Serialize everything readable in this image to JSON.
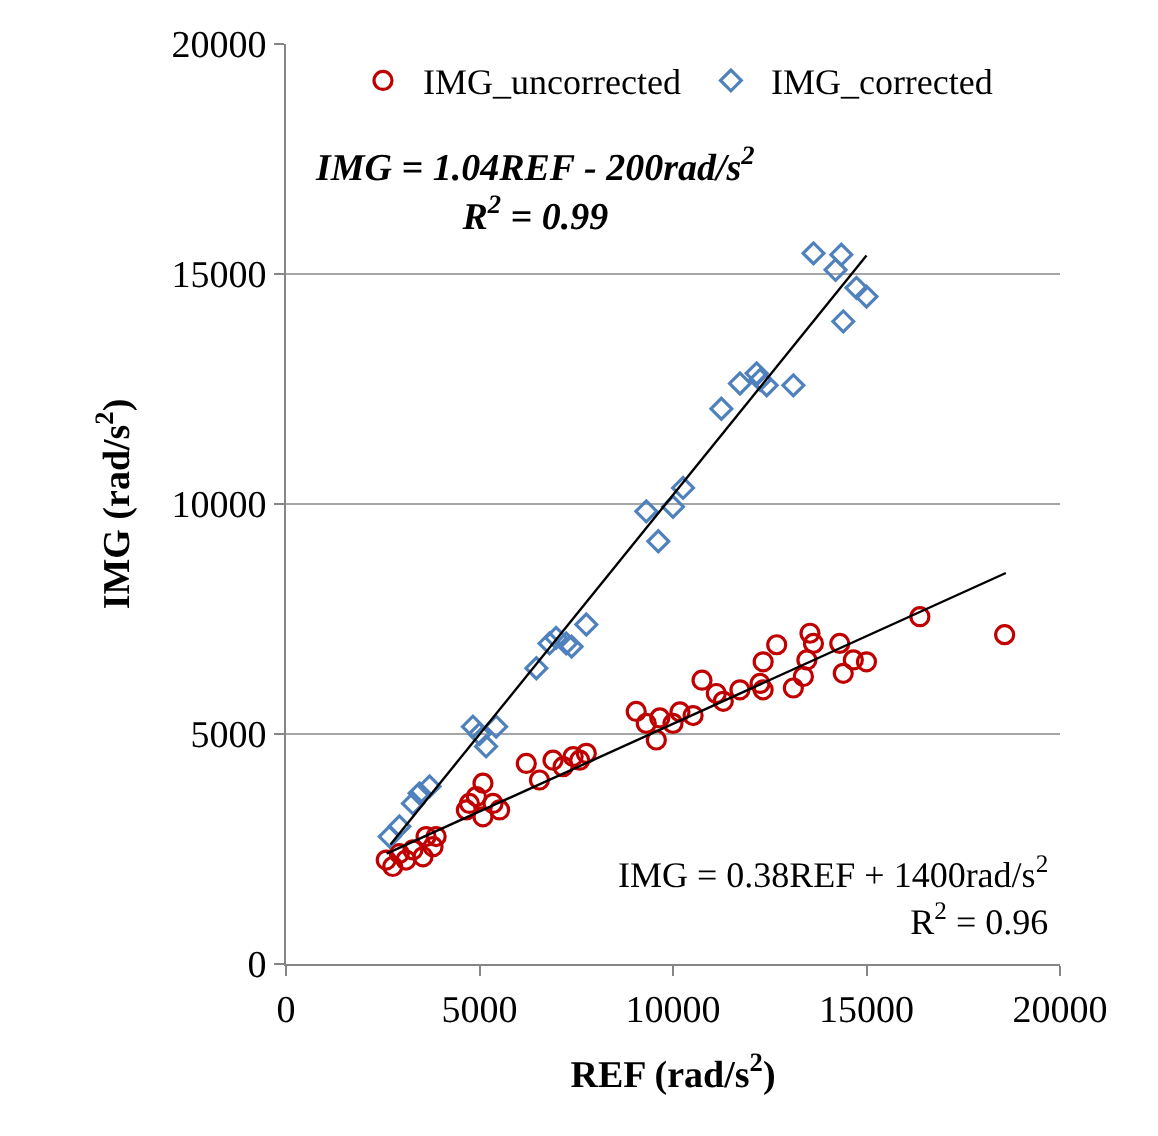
{
  "chart_data": {
    "type": "scatter",
    "xlabel": "REF (rad/s$^{2}$)",
    "ylabel": "IMG (rad/s$^{2}$)",
    "xlim": [
      0,
      20000
    ],
    "xticks": [
      0,
      5000,
      10000,
      15000,
      20000
    ],
    "ylim": [
      0,
      20000
    ],
    "yticks": [
      0,
      5000,
      10000,
      15000,
      20000
    ],
    "grid": "y",
    "legend": "top",
    "annotations": [
      "IMG = 1.04REF - 200rad/s$^{2}$\nR$^{2}$ = 0.99",
      "IMG = 0.38REF + 1400rad/s$^{2}$\nR$^{2}$ = 0.96"
    ],
    "series": [
      {
        "name": "IMG_uncorrected",
        "color": "#c00000",
        "marker": "circle",
        "x": [
          16380,
          18570,
          13540,
          14310,
          13630,
          12680,
          12330,
          13460,
          14660,
          15000,
          14400,
          13370,
          13110,
          12250,
          12330,
          11730,
          11300,
          11120,
          10750,
          10520,
          10180,
          10000,
          9570,
          9660,
          9310,
          9050,
          7760,
          7590,
          7420,
          6900,
          7160,
          6210,
          6550,
          5090,
          4740,
          4920,
          5350,
          5090,
          4660,
          5520,
          3620,
          3800,
          3280,
          2930,
          2590,
          3100,
          2760,
          3540,
          3880
        ],
        "values": [
          7550,
          7160,
          7190,
          6970,
          6970,
          6940,
          6570,
          6610,
          6610,
          6570,
          6320,
          6250,
          6000,
          6100,
          5960,
          5960,
          5710,
          5880,
          6170,
          5400,
          5480,
          5230,
          4870,
          5350,
          5230,
          5490,
          4580,
          4430,
          4510,
          4430,
          4290,
          4360,
          4000,
          3930,
          3490,
          3640,
          3490,
          3200,
          3350,
          3350,
          2770,
          2550,
          2480,
          2400,
          2260,
          2260,
          2120,
          2330,
          2770
        ]
      },
      {
        "name": "IMG_corrected",
        "color": "#4f81bd",
        "marker": "diamond",
        "x": [
          13630,
          14350,
          14200,
          14740,
          15000,
          14400,
          11730,
          12160,
          12250,
          12420,
          13110,
          11250,
          9310,
          10260,
          10000,
          9620,
          7760,
          7240,
          6810,
          6980,
          7380,
          6470,
          4830,
          5430,
          5000,
          5170,
          3450,
          3710,
          3280,
          2850,
          2680,
          2930
        ],
        "values": [
          15450,
          15420,
          15090,
          14700,
          14510,
          13970,
          12620,
          12840,
          12700,
          12580,
          12580,
          12070,
          9840,
          10350,
          9940,
          9190,
          7380,
          6970,
          6970,
          7090,
          6900,
          6430,
          5160,
          5160,
          5000,
          4730,
          3710,
          3860,
          3490,
          null,
          2770,
          2990
        ]
      },
      {
        "type": "line",
        "color": "#000000",
        "marker": "none",
        "x": [
          2700,
          15000
        ],
        "values": [
          2600,
          15400
        ]
      },
      {
        "type": "line",
        "color": "#000000",
        "marker": "none",
        "x": [
          2600,
          18600
        ],
        "values": [
          2400,
          8500
        ]
      }
    ]
  }
}
